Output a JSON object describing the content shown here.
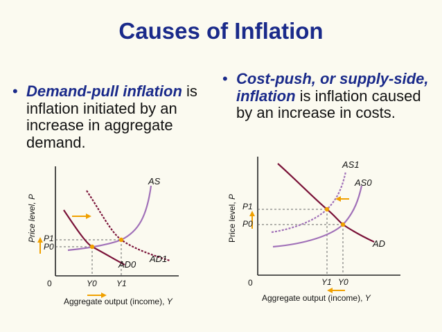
{
  "title": "Causes of Inflation",
  "left_bullet": {
    "term": "Demand-pull inflation",
    "text": "is inflation initiated by an increase in aggregate demand."
  },
  "right_bullet": {
    "term1": "Cost-push,",
    "connector": "or",
    "term2": "supply-side, inflation",
    "text": "is inflation caused by an increase in costs."
  },
  "colors": {
    "title": "#1a2a8a",
    "supply_curve": "#a070b8",
    "demand_curve": "#7a1238",
    "equilibrium_point": "#f0a000",
    "shift_arrow": "#f0a000",
    "guide_lines": "#666666"
  },
  "chart_data": [
    {
      "type": "diagram",
      "ylabel_main": "Price level, ",
      "ylabel_var": "P",
      "xlabel_main": "Aggregate output (income), ",
      "xlabel_var": "Y",
      "origin_label": "0",
      "curves": {
        "as": "AS",
        "ad0": "AD0",
        "ad1": "AD1"
      },
      "price_ticks": [
        "P1",
        "P0"
      ],
      "output_ticks": [
        "Y0",
        "Y1"
      ]
    },
    {
      "type": "diagram",
      "ylabel_main": "Price level, ",
      "ylabel_var": "P",
      "xlabel_main": "Aggregate output (income), ",
      "xlabel_var": "Y",
      "origin_label": "0",
      "curves": {
        "as1": "AS1",
        "as0": "AS0",
        "ad": "AD"
      },
      "price_ticks": [
        "P1",
        "P0"
      ],
      "output_ticks": [
        "Y1",
        "Y0"
      ]
    }
  ]
}
